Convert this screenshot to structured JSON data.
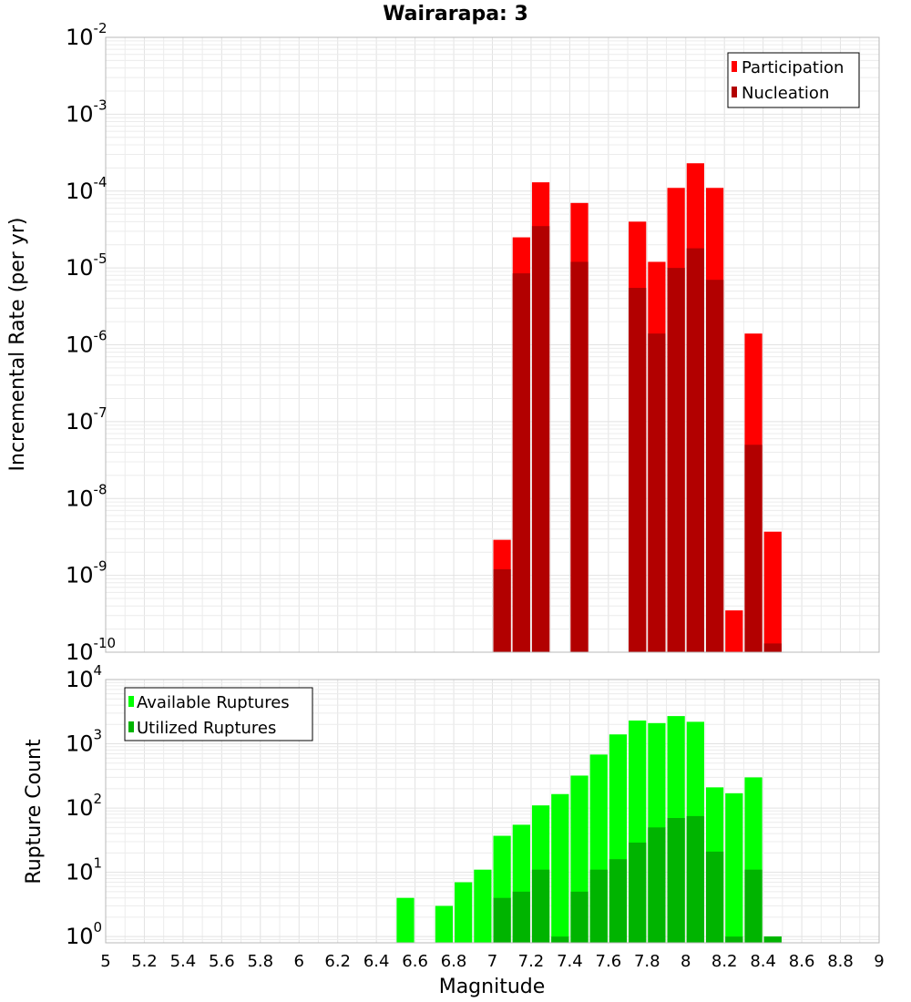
{
  "chart_data": [
    {
      "type": "bar",
      "title": "Wairarapa: 3",
      "ylabel": "Incremental Rate (per yr)",
      "xlabel": "",
      "xlim": [
        5,
        9
      ],
      "yscale": "log",
      "ylim": [
        1e-10,
        0.01
      ],
      "y_tick_labels": [
        {
          "value": 0.01,
          "base": "10",
          "exp": "-2"
        },
        {
          "value": 0.001,
          "base": "10",
          "exp": "-3"
        },
        {
          "value": 0.0001,
          "base": "10",
          "exp": "-4"
        },
        {
          "value": 1e-05,
          "base": "10",
          "exp": "-5"
        },
        {
          "value": 1e-06,
          "base": "10",
          "exp": "-6"
        },
        {
          "value": 1e-07,
          "base": "10",
          "exp": "-7"
        },
        {
          "value": 1e-08,
          "base": "10",
          "exp": "-8"
        },
        {
          "value": 1e-09,
          "base": "10",
          "exp": "-9"
        },
        {
          "value": 1e-10,
          "base": "10",
          "exp": "-10"
        }
      ],
      "grid": true,
      "legend_position": "top-right",
      "bar_width": 0.1,
      "series": [
        {
          "name": "Participation",
          "color": "#ff0000",
          "points": [
            {
              "x": 7.05,
              "y": 2.9e-09
            },
            {
              "x": 7.15,
              "y": 2.5e-05
            },
            {
              "x": 7.25,
              "y": 0.00013
            },
            {
              "x": 7.45,
              "y": 7e-05
            },
            {
              "x": 7.75,
              "y": 4e-05
            },
            {
              "x": 7.85,
              "y": 1.2e-05
            },
            {
              "x": 7.95,
              "y": 0.00011
            },
            {
              "x": 8.05,
              "y": 0.00023
            },
            {
              "x": 8.15,
              "y": 0.00011
            },
            {
              "x": 8.25,
              "y": 3.5e-10
            },
            {
              "x": 8.35,
              "y": 1.4e-06
            },
            {
              "x": 8.45,
              "y": 3.7e-09
            }
          ]
        },
        {
          "name": "Nucleation",
          "color": "#b20000",
          "points": [
            {
              "x": 7.05,
              "y": 1.2e-09
            },
            {
              "x": 7.15,
              "y": 8.5e-06
            },
            {
              "x": 7.25,
              "y": 3.5e-05
            },
            {
              "x": 7.45,
              "y": 1.2e-05
            },
            {
              "x": 7.75,
              "y": 5.5e-06
            },
            {
              "x": 7.85,
              "y": 1.4e-06
            },
            {
              "x": 7.95,
              "y": 1e-05
            },
            {
              "x": 8.05,
              "y": 1.8e-05
            },
            {
              "x": 8.15,
              "y": 7e-06
            },
            {
              "x": 8.35,
              "y": 5e-08
            },
            {
              "x": 8.45,
              "y": 1.3e-10
            }
          ]
        }
      ]
    },
    {
      "type": "bar",
      "title": "",
      "ylabel": "Rupture Count",
      "xlabel": "Magnitude",
      "xlim": [
        5,
        9
      ],
      "x_ticks": [
        "5",
        "5.2",
        "5.4",
        "5.6",
        "5.8",
        "6",
        "6.2",
        "6.4",
        "6.6",
        "6.8",
        "7",
        "7.2",
        "7.4",
        "7.6",
        "7.8",
        "8",
        "8.2",
        "8.4",
        "8.6",
        "8.8",
        "9"
      ],
      "yscale": "log",
      "ylim": [
        0.8,
        10000
      ],
      "y_tick_labels": [
        {
          "value": 10000,
          "base": "10",
          "exp": "4"
        },
        {
          "value": 1000,
          "base": "10",
          "exp": "3"
        },
        {
          "value": 100,
          "base": "10",
          "exp": "2"
        },
        {
          "value": 10,
          "base": "10",
          "exp": "1"
        },
        {
          "value": 1,
          "base": "10",
          "exp": "0"
        }
      ],
      "grid": true,
      "legend_position": "top-left",
      "bar_width": 0.1,
      "series": [
        {
          "name": "Available Ruptures",
          "color": "#00ff00",
          "points": [
            {
              "x": 6.55,
              "y": 4
            },
            {
              "x": 6.75,
              "y": 3
            },
            {
              "x": 6.85,
              "y": 7
            },
            {
              "x": 6.95,
              "y": 11
            },
            {
              "x": 7.05,
              "y": 37
            },
            {
              "x": 7.15,
              "y": 55
            },
            {
              "x": 7.25,
              "y": 110
            },
            {
              "x": 7.35,
              "y": 165
            },
            {
              "x": 7.45,
              "y": 320
            },
            {
              "x": 7.55,
              "y": 680
            },
            {
              "x": 7.65,
              "y": 1400
            },
            {
              "x": 7.75,
              "y": 2300
            },
            {
              "x": 7.85,
              "y": 2100
            },
            {
              "x": 7.95,
              "y": 2700
            },
            {
              "x": 8.05,
              "y": 2200
            },
            {
              "x": 8.15,
              "y": 210
            },
            {
              "x": 8.25,
              "y": 170
            },
            {
              "x": 8.35,
              "y": 300
            },
            {
              "x": 8.45,
              "y": 1
            }
          ]
        },
        {
          "name": "Utilized Ruptures",
          "color": "#00b400",
          "points": [
            {
              "x": 7.05,
              "y": 4
            },
            {
              "x": 7.15,
              "y": 5
            },
            {
              "x": 7.25,
              "y": 11
            },
            {
              "x": 7.35,
              "y": 1
            },
            {
              "x": 7.45,
              "y": 5
            },
            {
              "x": 7.55,
              "y": 11
            },
            {
              "x": 7.65,
              "y": 16
            },
            {
              "x": 7.75,
              "y": 29
            },
            {
              "x": 7.85,
              "y": 50
            },
            {
              "x": 7.95,
              "y": 70
            },
            {
              "x": 8.05,
              "y": 75
            },
            {
              "x": 8.15,
              "y": 21
            },
            {
              "x": 8.25,
              "y": 1
            },
            {
              "x": 8.35,
              "y": 11
            },
            {
              "x": 8.45,
              "y": 1
            }
          ]
        }
      ]
    }
  ]
}
